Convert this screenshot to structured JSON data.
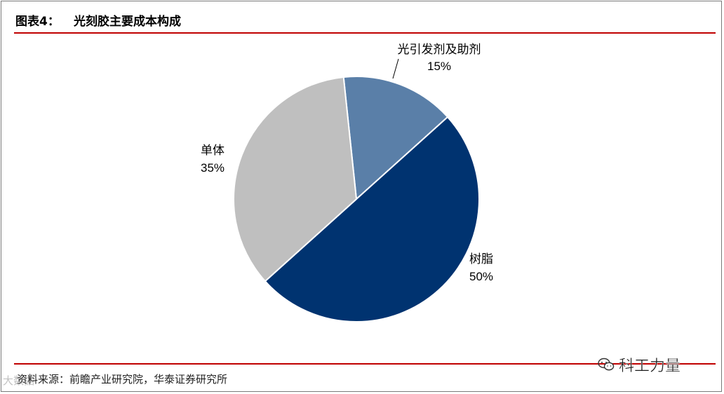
{
  "header": {
    "figure_label": "图表4：",
    "title": "光刻胶主要成本构成"
  },
  "chart_data": {
    "type": "pie",
    "title": "光刻胶主要成本构成",
    "slices": [
      {
        "label": "光引发剂及助剂",
        "value": 15,
        "value_label": "15%",
        "color": "#5a7fa8"
      },
      {
        "label": "树脂",
        "value": 50,
        "value_label": "50%",
        "color": "#003370"
      },
      {
        "label": "单体",
        "value": 35,
        "value_label": "35%",
        "color": "#bfbfbf"
      }
    ],
    "start_angle_deg": -6,
    "direction": "clockwise"
  },
  "footer": {
    "source": "资料来源：前瞻产业研究院，华泰证券研究所",
    "watermark_left": "大数据",
    "watermark_right": "科工力量",
    "watermark_icon": "wechat-icon"
  },
  "colors": {
    "accent_line": "#c00000",
    "frame_border": "#7a7a7a"
  }
}
